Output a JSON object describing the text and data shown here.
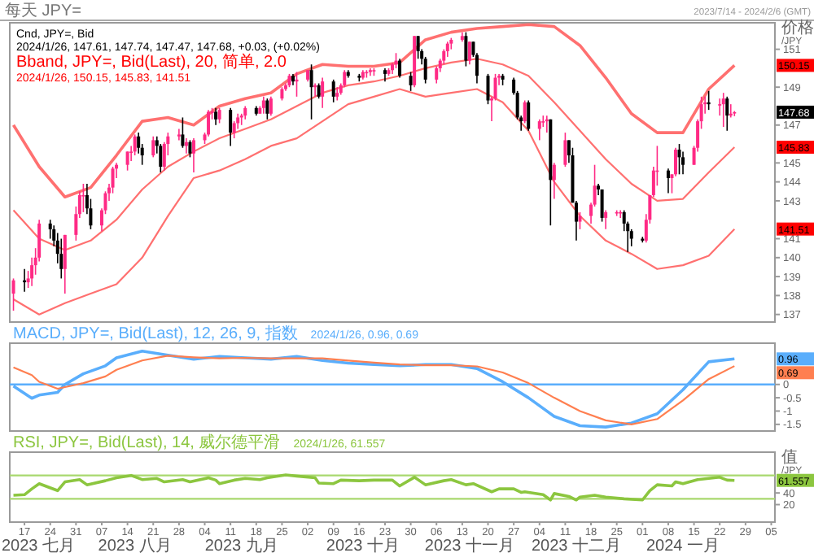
{
  "chart_data": [
    {
      "type": "candlestick",
      "title": "Cnd, JPY=, Bid",
      "subtitle": "2024/1/26, 147.61, 147.74, 147.47, 147.68, +0.03, (+0.02%)",
      "ylabel": "价格 /JPY",
      "annotations": [
        "每天 JPY=",
        "2023/7/14 - 2024/2/6 (GMT)",
        "Bband, JPY=, Bid(Last), 20, 简单, 2.0",
        "2024/1/26, 150.15, 145.83, 141.51",
        "150.15",
        "145.83",
        "141.51",
        "147.68"
      ],
      "xlim": [
        "2023-07-13",
        "2024-02-06"
      ],
      "ylim": [
        136.6,
        152.4
      ],
      "yticks": [
        137,
        138,
        139,
        140,
        141,
        143,
        144,
        145,
        147,
        149,
        151
      ],
      "tick_labels": "y",
      "x": [
        "2023-07-14",
        "2023-07-17",
        "2023-07-18",
        "2023-07-19",
        "2023-07-20",
        "2023-07-21",
        "2023-07-24",
        "2023-07-25",
        "2023-07-26",
        "2023-07-27",
        "2023-07-28",
        "2023-07-31",
        "2023-08-01",
        "2023-08-02",
        "2023-08-03",
        "2023-08-04",
        "2023-08-07",
        "2023-08-08",
        "2023-08-09",
        "2023-08-10",
        "2023-08-11",
        "2023-08-14",
        "2023-08-15",
        "2023-08-16",
        "2023-08-17",
        "2023-08-18",
        "2023-08-21",
        "2023-08-22",
        "2023-08-23",
        "2023-08-24",
        "2023-08-25",
        "2023-08-28",
        "2023-08-29",
        "2023-08-30",
        "2023-08-31",
        "2023-09-01",
        "2023-09-04",
        "2023-09-05",
        "2023-09-06",
        "2023-09-07",
        "2023-09-08",
        "2023-09-11",
        "2023-09-12",
        "2023-09-13",
        "2023-09-14",
        "2023-09-15",
        "2023-09-18",
        "2023-09-19",
        "2023-09-20",
        "2023-09-21",
        "2023-09-22",
        "2023-09-25",
        "2023-09-26",
        "2023-09-27",
        "2023-09-28",
        "2023-09-29",
        "2023-10-02",
        "2023-10-03",
        "2023-10-04",
        "2023-10-05",
        "2023-10-06",
        "2023-10-09",
        "2023-10-10",
        "2023-10-11",
        "2023-10-12",
        "2023-10-13",
        "2023-10-16",
        "2023-10-17",
        "2023-10-18",
        "2023-10-19",
        "2023-10-20",
        "2023-10-23",
        "2023-10-24",
        "2023-10-25",
        "2023-10-26",
        "2023-10-27",
        "2023-10-30",
        "2023-10-31",
        "2023-11-01",
        "2023-11-02",
        "2023-11-03",
        "2023-11-06",
        "2023-11-07",
        "2023-11-08",
        "2023-11-09",
        "2023-11-10",
        "2023-11-13",
        "2023-11-14",
        "2023-11-15",
        "2023-11-16",
        "2023-11-17",
        "2023-11-20",
        "2023-11-21",
        "2023-11-22",
        "2023-11-23",
        "2023-11-24",
        "2023-11-27",
        "2023-11-28",
        "2023-11-29",
        "2023-11-30",
        "2023-12-01",
        "2023-12-04",
        "2023-12-05",
        "2023-12-06",
        "2023-12-07",
        "2023-12-08",
        "2023-12-11",
        "2023-12-12",
        "2023-12-13",
        "2023-12-14",
        "2023-12-15",
        "2023-12-18",
        "2023-12-19",
        "2023-12-20",
        "2023-12-21",
        "2023-12-22",
        "2023-12-25",
        "2023-12-26",
        "2023-12-27",
        "2023-12-28",
        "2023-12-29",
        "2024-01-01",
        "2024-01-02",
        "2024-01-03",
        "2024-01-04",
        "2024-01-05",
        "2024-01-08",
        "2024-01-09",
        "2024-01-10",
        "2024-01-11",
        "2024-01-12",
        "2024-01-15",
        "2024-01-16",
        "2024-01-17",
        "2024-01-18",
        "2024-01-19",
        "2024-01-22",
        "2024-01-23",
        "2024-01-24",
        "2024-01-25",
        "2024-01-26"
      ],
      "ohlc": [
        [
          138.1,
          138.9,
          137.2,
          138.8
        ],
        [
          138.8,
          139.4,
          138.2,
          138.7
        ],
        [
          138.7,
          139.3,
          138.4,
          138.9
        ],
        [
          138.9,
          140.0,
          138.5,
          139.6
        ],
        [
          139.6,
          140.5,
          139.1,
          140.0
        ],
        [
          140.0,
          142.0,
          139.8,
          141.8
        ],
        [
          141.8,
          142.0,
          141.0,
          141.5
        ],
        [
          141.5,
          141.7,
          140.6,
          140.9
        ],
        [
          140.9,
          141.3,
          139.7,
          140.2
        ],
        [
          140.2,
          141.0,
          138.9,
          139.4
        ],
        [
          139.4,
          141.2,
          138.1,
          141.2
        ],
        [
          141.2,
          142.7,
          140.9,
          142.3
        ],
        [
          142.3,
          143.5,
          142.1,
          143.3
        ],
        [
          143.3,
          143.9,
          142.4,
          143.3
        ],
        [
          143.3,
          143.9,
          142.3,
          142.6
        ],
        [
          142.6,
          143.1,
          141.5,
          141.7
        ],
        [
          141.7,
          142.6,
          141.4,
          142.5
        ],
        [
          142.5,
          143.5,
          142.3,
          143.4
        ],
        [
          143.4,
          143.9,
          143.0,
          143.7
        ],
        [
          143.7,
          144.8,
          143.4,
          144.7
        ],
        [
          144.7,
          145.0,
          144.2,
          144.9
        ],
        [
          144.9,
          145.6,
          144.6,
          145.6
        ],
        [
          145.6,
          145.9,
          145.1,
          145.6
        ],
        [
          145.6,
          146.5,
          145.4,
          146.4
        ],
        [
          146.4,
          146.6,
          145.5,
          145.8
        ],
        [
          145.8,
          146.0,
          144.9,
          145.4
        ],
        [
          145.4,
          146.4,
          145.3,
          146.2
        ],
        [
          146.2,
          146.4,
          145.5,
          145.9
        ],
        [
          145.9,
          146.0,
          144.5,
          144.8
        ],
        [
          144.8,
          146.1,
          144.6,
          146.0
        ],
        [
          146.0,
          146.6,
          145.4,
          146.4
        ],
        [
          146.4,
          146.8,
          146.2,
          146.5
        ],
        [
          146.5,
          147.4,
          145.8,
          145.9
        ],
        [
          145.9,
          146.3,
          145.5,
          146.1
        ],
        [
          146.1,
          146.2,
          145.3,
          145.5
        ],
        [
          145.5,
          146.3,
          144.5,
          146.2
        ],
        [
          146.2,
          146.6,
          146.0,
          146.5
        ],
        [
          146.5,
          147.8,
          146.4,
          147.7
        ],
        [
          147.7,
          147.9,
          147.3,
          147.7
        ],
        [
          147.7,
          147.9,
          147.0,
          147.3
        ],
        [
          147.3,
          147.9,
          147.1,
          147.8
        ],
        [
          147.8,
          147.9,
          145.9,
          146.6
        ],
        [
          146.6,
          147.2,
          146.3,
          147.1
        ],
        [
          147.1,
          147.6,
          146.8,
          147.4
        ],
        [
          147.4,
          147.6,
          147.0,
          147.5
        ],
        [
          147.5,
          148.0,
          147.3,
          147.9
        ],
        [
          147.9,
          148.0,
          147.5,
          147.6
        ],
        [
          147.6,
          148.0,
          147.6,
          147.9
        ],
        [
          147.9,
          148.5,
          147.6,
          148.3
        ],
        [
          148.3,
          148.4,
          147.3,
          147.6
        ],
        [
          147.6,
          148.5,
          147.5,
          148.4
        ],
        [
          148.4,
          149.0,
          148.3,
          148.9
        ],
        [
          148.9,
          149.2,
          148.8,
          149.1
        ],
        [
          149.1,
          149.7,
          149.0,
          149.6
        ],
        [
          149.6,
          149.7,
          149.1,
          149.3
        ],
        [
          149.3,
          149.8,
          148.5,
          149.4
        ],
        [
          149.4,
          149.9,
          149.3,
          149.9
        ],
        [
          149.9,
          150.2,
          147.3,
          149.0
        ],
        [
          149.0,
          149.2,
          148.5,
          149.1
        ],
        [
          149.1,
          149.2,
          148.4,
          148.5
        ],
        [
          148.5,
          149.5,
          147.9,
          149.3
        ],
        [
          149.3,
          149.4,
          148.2,
          148.5
        ],
        [
          148.5,
          149.0,
          148.3,
          148.7
        ],
        [
          148.7,
          149.2,
          148.6,
          149.1
        ],
        [
          149.1,
          149.9,
          149.0,
          149.8
        ],
        [
          149.8,
          149.9,
          149.5,
          149.6
        ],
        [
          149.6,
          149.7,
          149.3,
          149.5
        ],
        [
          149.5,
          149.9,
          149.4,
          149.8
        ],
        [
          149.8,
          149.9,
          149.5,
          149.8
        ],
        [
          149.8,
          150.0,
          149.6,
          149.9
        ],
        [
          149.9,
          150.0,
          149.6,
          149.9
        ],
        [
          149.9,
          150.0,
          149.3,
          149.7
        ],
        [
          149.7,
          150.0,
          149.6,
          149.9
        ],
        [
          149.9,
          150.3,
          149.7,
          150.2
        ],
        [
          150.2,
          150.8,
          150.0,
          150.4
        ],
        [
          150.4,
          150.5,
          149.5,
          149.6
        ],
        [
          149.6,
          149.8,
          148.8,
          149.1
        ],
        [
          149.1,
          151.7,
          149.0,
          151.7
        ],
        [
          151.7,
          151.7,
          150.5,
          150.9
        ],
        [
          150.9,
          151.0,
          150.2,
          150.5
        ],
        [
          150.5,
          150.6,
          149.2,
          149.4
        ],
        [
          149.4,
          150.1,
          149.2,
          150.0
        ],
        [
          150.0,
          150.5,
          149.8,
          150.4
        ],
        [
          150.4,
          151.0,
          150.2,
          150.9
        ],
        [
          150.9,
          151.4,
          150.6,
          151.3
        ],
        [
          151.3,
          151.6,
          151.0,
          151.5
        ],
        [
          151.5,
          151.9,
          151.4,
          151.7
        ],
        [
          151.7,
          151.9,
          150.1,
          150.4
        ],
        [
          150.4,
          151.4,
          150.2,
          151.4
        ],
        [
          151.4,
          151.4,
          150.6,
          150.7
        ],
        [
          150.7,
          150.8,
          149.2,
          149.6
        ],
        [
          149.6,
          149.7,
          148.1,
          148.3
        ],
        [
          148.3,
          148.5,
          147.2,
          148.4
        ],
        [
          148.4,
          149.7,
          148.3,
          149.5
        ],
        [
          149.5,
          149.7,
          149.1,
          149.6
        ],
        [
          149.6,
          149.7,
          149.1,
          149.4
        ],
        [
          149.4,
          149.5,
          148.6,
          148.7
        ],
        [
          148.7,
          148.8,
          147.3,
          147.4
        ],
        [
          147.4,
          147.5,
          146.7,
          147.2
        ],
        [
          147.2,
          148.3,
          147.1,
          148.2
        ],
        [
          148.2,
          148.3,
          146.7,
          146.8
        ],
        [
          146.8,
          147.3,
          146.2,
          147.2
        ],
        [
          147.2,
          147.5,
          146.9,
          147.2
        ],
        [
          147.2,
          147.5,
          146.6,
          147.3
        ],
        [
          147.3,
          147.3,
          141.7,
          144.1
        ],
        [
          144.1,
          145.0,
          143.1,
          144.9
        ],
        [
          144.9,
          146.6,
          144.8,
          146.2
        ],
        [
          146.2,
          146.2,
          145.0,
          145.4
        ],
        [
          145.4,
          145.8,
          142.9,
          142.9
        ],
        [
          142.9,
          143.0,
          140.9,
          141.9
        ],
        [
          141.9,
          142.4,
          141.5,
          142.2
        ],
        [
          142.2,
          142.9,
          141.8,
          142.8
        ],
        [
          142.8,
          144.9,
          142.7,
          143.8
        ],
        [
          143.8,
          143.9,
          143.3,
          143.6
        ],
        [
          143.6,
          143.6,
          141.9,
          142.1
        ],
        [
          142.1,
          142.5,
          141.5,
          142.4
        ],
        [
          142.4,
          142.5,
          142.2,
          142.4
        ],
        [
          142.4,
          142.5,
          142.1,
          142.4
        ],
        [
          142.4,
          142.5,
          141.4,
          141.8
        ],
        [
          141.8,
          141.9,
          140.3,
          141.4
        ],
        [
          141.4,
          141.5,
          140.6,
          141.0
        ],
        [
          141.0,
          141.1,
          140.8,
          140.9
        ],
        [
          140.9,
          142.3,
          140.8,
          142.0
        ],
        [
          142.0,
          143.3,
          141.8,
          143.3
        ],
        [
          143.3,
          144.8,
          143.2,
          144.6
        ],
        [
          144.6,
          145.9,
          143.8,
          144.6
        ],
        [
          144.6,
          144.7,
          143.4,
          144.2
        ],
        [
          144.2,
          144.4,
          143.4,
          144.4
        ],
        [
          144.4,
          145.8,
          144.3,
          145.7
        ],
        [
          145.7,
          146.0,
          144.4,
          145.3
        ],
        [
          145.3,
          145.6,
          144.4,
          144.9
        ],
        [
          144.9,
          145.9,
          144.9,
          145.8
        ],
        [
          145.8,
          147.3,
          145.6,
          147.2
        ],
        [
          147.2,
          148.5,
          146.8,
          148.1
        ],
        [
          148.1,
          148.5,
          147.6,
          148.2
        ],
        [
          148.2,
          148.8,
          147.8,
          148.1
        ],
        [
          148.1,
          148.4,
          147.5,
          148.1
        ],
        [
          148.1,
          148.7,
          146.9,
          148.4
        ],
        [
          148.4,
          148.5,
          146.7,
          147.5
        ],
        [
          147.5,
          148.1,
          147.4,
          147.6
        ],
        [
          147.61,
          147.74,
          147.47,
          147.68
        ]
      ],
      "colors": [
        "#ff2a85",
        "#000000",
        "#ff2a85",
        "#ff2a85",
        "#ff2a85",
        "#ff2a85",
        "#000000",
        "#000000",
        "#000000",
        "#000000",
        "#ff2a85",
        "#ff2a85",
        "#ff2a85",
        "#ff2a85",
        "#000000",
        "#000000",
        "#ff2a85",
        "#ff2a85",
        "#ff2a85",
        "#ff2a85",
        "#ff2a85",
        "#ff2a85",
        "#ff2a85",
        "#ff2a85",
        "#000000",
        "#000000",
        "#ff2a85",
        "#000000",
        "#000000",
        "#ff2a85",
        "#ff2a85",
        "#ff2a85",
        "#000000",
        "#ff2a85",
        "#000000",
        "#ff2a85",
        "#ff2a85",
        "#ff2a85",
        "#ff2a85",
        "#000000",
        "#ff2a85",
        "#000000",
        "#ff2a85",
        "#ff2a85",
        "#ff2a85",
        "#ff2a85",
        "#000000",
        "#ff2a85",
        "#ff2a85",
        "#000000",
        "#ff2a85",
        "#ff2a85",
        "#ff2a85",
        "#ff2a85",
        "#000000",
        "#ff2a85",
        "#ff2a85",
        "#000000",
        "#ff2a85",
        "#000000",
        "#ff2a85",
        "#000000",
        "#ff2a85",
        "#ff2a85",
        "#ff2a85",
        "#000000",
        "#000000",
        "#ff2a85",
        "#ff2a85",
        "#ff2a85",
        "#ff2a85",
        "#000000",
        "#ff2a85",
        "#ff2a85",
        "#ff2a85",
        "#000000",
        "#000000",
        "#ff2a85",
        "#000000",
        "#000000",
        "#000000",
        "#ff2a85",
        "#ff2a85",
        "#ff2a85",
        "#ff2a85",
        "#ff2a85",
        "#ff2a85",
        "#000000",
        "#ff2a85",
        "#000000",
        "#000000",
        "#000000",
        "#ff2a85",
        "#ff2a85",
        "#ff2a85",
        "#000000",
        "#000000",
        "#000000",
        "#000000",
        "#ff2a85",
        "#000000",
        "#ff2a85",
        "#ff2a85",
        "#ff2a85",
        "#000000",
        "#ff2a85",
        "#ff2a85",
        "#000000",
        "#000000",
        "#000000",
        "#ff2a85",
        "#ff2a85",
        "#ff2a85",
        "#000000",
        "#000000",
        "#ff2a85",
        "#ff2a85",
        "#ff2a85",
        "#000000",
        "#000000",
        "#000000",
        "#000000",
        "#ff2a85",
        "#ff2a85",
        "#ff2a85",
        "#ff2a85",
        "#000000",
        "#ff2a85",
        "#ff2a85",
        "#000000",
        "#000000",
        "#ff2a85",
        "#ff2a85",
        "#ff2a85",
        "#ff2a85",
        "#000000",
        "#ff2a85",
        "#ff2a85",
        "#000000",
        "#ff2a85",
        "#ff2a85"
      ],
      "series": [
        {
          "type": "line",
          "color": "#ff7070",
          "x": [
            "2023-07-14",
            "2023-07-21",
            "2023-07-28",
            "2023-08-04",
            "2023-08-11",
            "2023-08-18",
            "2023-08-25",
            "2023-09-01",
            "2023-09-08",
            "2023-09-15",
            "2023-09-22",
            "2023-09-29",
            "2023-10-06",
            "2023-10-13",
            "2023-10-20",
            "2023-10-27",
            "2023-11-03",
            "2023-11-10",
            "2023-11-17",
            "2023-11-24",
            "2023-12-01",
            "2023-12-08",
            "2023-12-15",
            "2023-12-22",
            "2023-12-29",
            "2024-01-05",
            "2024-01-12",
            "2024-01-19",
            "2024-01-26"
          ],
          "values": [
            147.0,
            144.8,
            143.2,
            143.7,
            145.4,
            147.2,
            147.4,
            147.0,
            148.0,
            148.4,
            148.7,
            149.7,
            150.2,
            150.1,
            150.1,
            150.3,
            151.5,
            151.9,
            152.1,
            152.2,
            152.3,
            152.2,
            151.2,
            149.5,
            147.6,
            146.6,
            146.6,
            148.9,
            150.15
          ]
        },
        {
          "type": "line",
          "color": "#ff7070",
          "x": [
            "2023-07-14",
            "2023-07-21",
            "2023-07-28",
            "2023-08-04",
            "2023-08-11",
            "2023-08-18",
            "2023-08-25",
            "2023-09-01",
            "2023-09-08",
            "2023-09-15",
            "2023-09-22",
            "2023-09-29",
            "2023-10-06",
            "2023-10-13",
            "2023-10-20",
            "2023-10-27",
            "2023-11-03",
            "2023-11-10",
            "2023-11-17",
            "2023-11-24",
            "2023-12-01",
            "2023-12-08",
            "2023-12-15",
            "2023-12-22",
            "2023-12-29",
            "2024-01-05",
            "2024-01-12",
            "2024-01-19",
            "2024-01-26"
          ],
          "values": [
            142.5,
            141.0,
            140.4,
            140.9,
            142.0,
            143.6,
            144.8,
            145.6,
            146.3,
            146.8,
            147.3,
            148.0,
            148.7,
            149.1,
            149.3,
            149.6,
            150.0,
            150.3,
            150.5,
            150.2,
            149.6,
            148.2,
            146.7,
            145.2,
            143.9,
            143.0,
            143.1,
            144.5,
            145.83
          ]
        },
        {
          "type": "line",
          "color": "#ff7070",
          "x": [
            "2023-07-14",
            "2023-07-21",
            "2023-07-28",
            "2023-08-04",
            "2023-08-11",
            "2023-08-18",
            "2023-08-25",
            "2023-09-01",
            "2023-09-08",
            "2023-09-15",
            "2023-09-22",
            "2023-09-29",
            "2023-10-06",
            "2023-10-13",
            "2023-10-20",
            "2023-10-27",
            "2023-11-03",
            "2023-11-10",
            "2023-11-17",
            "2023-11-24",
            "2023-12-01",
            "2023-12-08",
            "2023-12-15",
            "2023-12-22",
            "2023-12-29",
            "2024-01-05",
            "2024-01-12",
            "2024-01-19",
            "2024-01-26"
          ],
          "values": [
            137.8,
            137.0,
            137.6,
            138.1,
            138.6,
            140.0,
            142.2,
            144.2,
            144.6,
            145.2,
            145.9,
            146.3,
            147.2,
            148.1,
            148.5,
            148.9,
            148.5,
            148.7,
            148.9,
            148.2,
            146.7,
            144.0,
            142.2,
            140.9,
            140.2,
            139.4,
            139.6,
            140.1,
            141.51
          ]
        }
      ]
    },
    {
      "type": "line",
      "title": "MACD, JPY=, Bid(Last), 12, 26, 9, 指数",
      "subtitle": "2024/1/26, 0.96, 0.69",
      "annotations": [
        "0.96",
        "0.69"
      ],
      "xlim": [
        "2023-07-13",
        "2024-02-06"
      ],
      "ylim": [
        -1.75,
        1.55
      ],
      "yticks": [
        0,
        -0.5,
        -1,
        -1.5
      ],
      "tick_labels": "y",
      "ref_lines": [
        {
          "axis": "y",
          "value": 0,
          "color": "#5aaefc"
        }
      ],
      "series": [
        {
          "color": "#5aaefc",
          "x": [
            "2023-07-14",
            "2023-07-19",
            "2023-07-21",
            "2023-07-26",
            "2023-07-28",
            "2023-08-02",
            "2023-08-08",
            "2023-08-11",
            "2023-08-18",
            "2023-08-25",
            "2023-09-01",
            "2023-09-08",
            "2023-09-15",
            "2023-09-22",
            "2023-09-29",
            "2023-10-06",
            "2023-10-13",
            "2023-10-20",
            "2023-10-27",
            "2023-11-03",
            "2023-11-10",
            "2023-11-17",
            "2023-11-24",
            "2023-12-01",
            "2023-12-08",
            "2023-12-15",
            "2023-12-22",
            "2023-12-29",
            "2024-01-05",
            "2024-01-12",
            "2024-01-19",
            "2024-01-26"
          ],
          "values": [
            -0.06,
            -0.52,
            -0.4,
            -0.3,
            0.0,
            0.4,
            0.7,
            1.0,
            1.25,
            1.1,
            0.95,
            1.05,
            1.0,
            0.95,
            1.05,
            0.9,
            0.8,
            0.75,
            0.7,
            0.75,
            0.75,
            0.6,
            0.1,
            -0.5,
            -1.2,
            -1.55,
            -1.6,
            -1.45,
            -1.1,
            -0.2,
            0.85,
            0.96
          ]
        },
        {
          "color": "#ff7f50",
          "x": [
            "2023-07-14",
            "2023-07-19",
            "2023-07-21",
            "2023-07-26",
            "2023-07-28",
            "2023-08-02",
            "2023-08-08",
            "2023-08-11",
            "2023-08-18",
            "2023-08-25",
            "2023-09-01",
            "2023-09-08",
            "2023-09-15",
            "2023-09-22",
            "2023-09-29",
            "2023-10-06",
            "2023-10-13",
            "2023-10-20",
            "2023-10-27",
            "2023-11-03",
            "2023-11-10",
            "2023-11-17",
            "2023-11-24",
            "2023-12-01",
            "2023-12-08",
            "2023-12-15",
            "2023-12-22",
            "2023-12-29",
            "2024-01-05",
            "2024-01-12",
            "2024-01-19",
            "2024-01-26"
          ],
          "values": [
            0.64,
            0.35,
            0.1,
            -0.16,
            -0.1,
            0.05,
            0.3,
            0.55,
            0.9,
            1.08,
            1.02,
            0.98,
            1.0,
            0.98,
            0.98,
            0.98,
            0.9,
            0.82,
            0.75,
            0.72,
            0.72,
            0.68,
            0.45,
            0.05,
            -0.5,
            -1.0,
            -1.35,
            -1.5,
            -1.3,
            -0.6,
            0.2,
            0.69
          ]
        }
      ]
    },
    {
      "type": "line",
      "title": "RSI, JPY=, Bid(Last), 14, 威尔德平滑",
      "subtitle": "2024/1/26, 61.557",
      "ylabel": "值 /JPY",
      "annotations": [
        "61.557"
      ],
      "xlim": [
        "2023-07-13",
        "2024-02-06"
      ],
      "x2lim": [
        "2023-07-13",
        "2024-02-06"
      ],
      "ylim": [
        -10,
        110
      ],
      "yticks": [
        20,
        40
      ],
      "xticks": [
        {
          "value": "2023-07-17",
          "label": "17"
        },
        {
          "value": "2023-07-24",
          "label": "24"
        },
        {
          "value": "2023-07-31",
          "label": "31"
        },
        {
          "value": "2023-08-07",
          "label": "07"
        },
        {
          "value": "2023-08-14",
          "label": "14"
        },
        {
          "value": "2023-08-21",
          "label": "21"
        },
        {
          "value": "2023-08-28",
          "label": "28"
        },
        {
          "value": "2023-09-04",
          "label": "04"
        },
        {
          "value": "2023-09-11",
          "label": "11"
        },
        {
          "value": "2023-09-18",
          "label": "18"
        },
        {
          "value": "2023-09-25",
          "label": "25"
        },
        {
          "value": "2023-10-02",
          "label": "02"
        },
        {
          "value": "2023-10-09",
          "label": "09"
        },
        {
          "value": "2023-10-16",
          "label": "16"
        },
        {
          "value": "2023-10-23",
          "label": "23"
        },
        {
          "value": "2023-10-30",
          "label": "30"
        },
        {
          "value": "2023-11-06",
          "label": "06"
        },
        {
          "value": "2023-11-13",
          "label": "13"
        },
        {
          "value": "2023-11-20",
          "label": "20"
        },
        {
          "value": "2023-11-27",
          "label": "27"
        },
        {
          "value": "2023-12-04",
          "label": "04"
        },
        {
          "value": "2023-12-11",
          "label": "11"
        },
        {
          "value": "2023-12-18",
          "label": "18"
        },
        {
          "value": "2023-12-25",
          "label": "25"
        },
        {
          "value": "2024-01-01",
          "label": "01"
        },
        {
          "value": "2024-01-08",
          "label": "08"
        },
        {
          "value": "2024-01-15",
          "label": "15"
        },
        {
          "value": "2024-01-22",
          "label": "22"
        },
        {
          "value": "2024-01-29",
          "label": "29"
        },
        {
          "value": "2024-02-05",
          "label": "05"
        }
      ],
      "x2ticks": [
        {
          "value": "2023-07-19",
          "label": "2023 七月"
        },
        {
          "value": "2023-08-16",
          "label": "2023 八月"
        },
        {
          "value": "2023-09-14",
          "label": "2023 九月"
        },
        {
          "value": "2023-10-17",
          "label": "2023 十月"
        },
        {
          "value": "2023-11-15",
          "label": "2023 十一月"
        },
        {
          "value": "2023-12-14",
          "label": "2023 十二月"
        },
        {
          "value": "2024-01-12",
          "label": "2024 一月"
        }
      ],
      "ref_lines": [
        {
          "axis": "y",
          "value": 70,
          "color": "#a8d86e"
        },
        {
          "axis": "y",
          "value": 30,
          "color": "#a8d86e"
        }
      ],
      "series": [
        {
          "color": "#8cc63f",
          "x": [
            "2023-07-14",
            "2023-07-17",
            "2023-07-19",
            "2023-07-21",
            "2023-07-26",
            "2023-07-28",
            "2023-08-01",
            "2023-08-03",
            "2023-08-08",
            "2023-08-11",
            "2023-08-15",
            "2023-08-18",
            "2023-08-22",
            "2023-08-24",
            "2023-08-29",
            "2023-08-31",
            "2023-09-05",
            "2023-09-07",
            "2023-09-08",
            "2023-09-12",
            "2023-09-15",
            "2023-09-19",
            "2023-09-21",
            "2023-09-26",
            "2023-09-29",
            "2023-10-04",
            "2023-10-05",
            "2023-10-09",
            "2023-10-11",
            "2023-10-16",
            "2023-10-20",
            "2023-10-25",
            "2023-10-27",
            "2023-10-31",
            "2023-11-03",
            "2023-11-08",
            "2023-11-10",
            "2023-11-14",
            "2023-11-16",
            "2023-11-21",
            "2023-11-23",
            "2023-11-27",
            "2023-11-29",
            "2023-11-30",
            "2023-12-05",
            "2023-12-07",
            "2023-12-08",
            "2023-12-12",
            "2023-12-14",
            "2023-12-15",
            "2023-12-19",
            "2023-12-22",
            "2023-12-27",
            "2024-01-01",
            "2024-01-03",
            "2024-01-05",
            "2024-01-09",
            "2024-01-10",
            "2024-01-12",
            "2024-01-16",
            "2024-01-22",
            "2024-01-24",
            "2024-01-26"
          ],
          "values": [
            36,
            37,
            47,
            56,
            44,
            59,
            63,
            54,
            61,
            66,
            70,
            63,
            65,
            59,
            63,
            59,
            66,
            62,
            56,
            62,
            65,
            63,
            66,
            71,
            69,
            66,
            57,
            56,
            62,
            61,
            62,
            62,
            52,
            67,
            54,
            61,
            63,
            54,
            56,
            42,
            47,
            47,
            41,
            42,
            37,
            28,
            39,
            34,
            28,
            33,
            36,
            33,
            30,
            28,
            44,
            54,
            52,
            59,
            56,
            63,
            67,
            62,
            61.557
          ]
        }
      ]
    }
  ]
}
